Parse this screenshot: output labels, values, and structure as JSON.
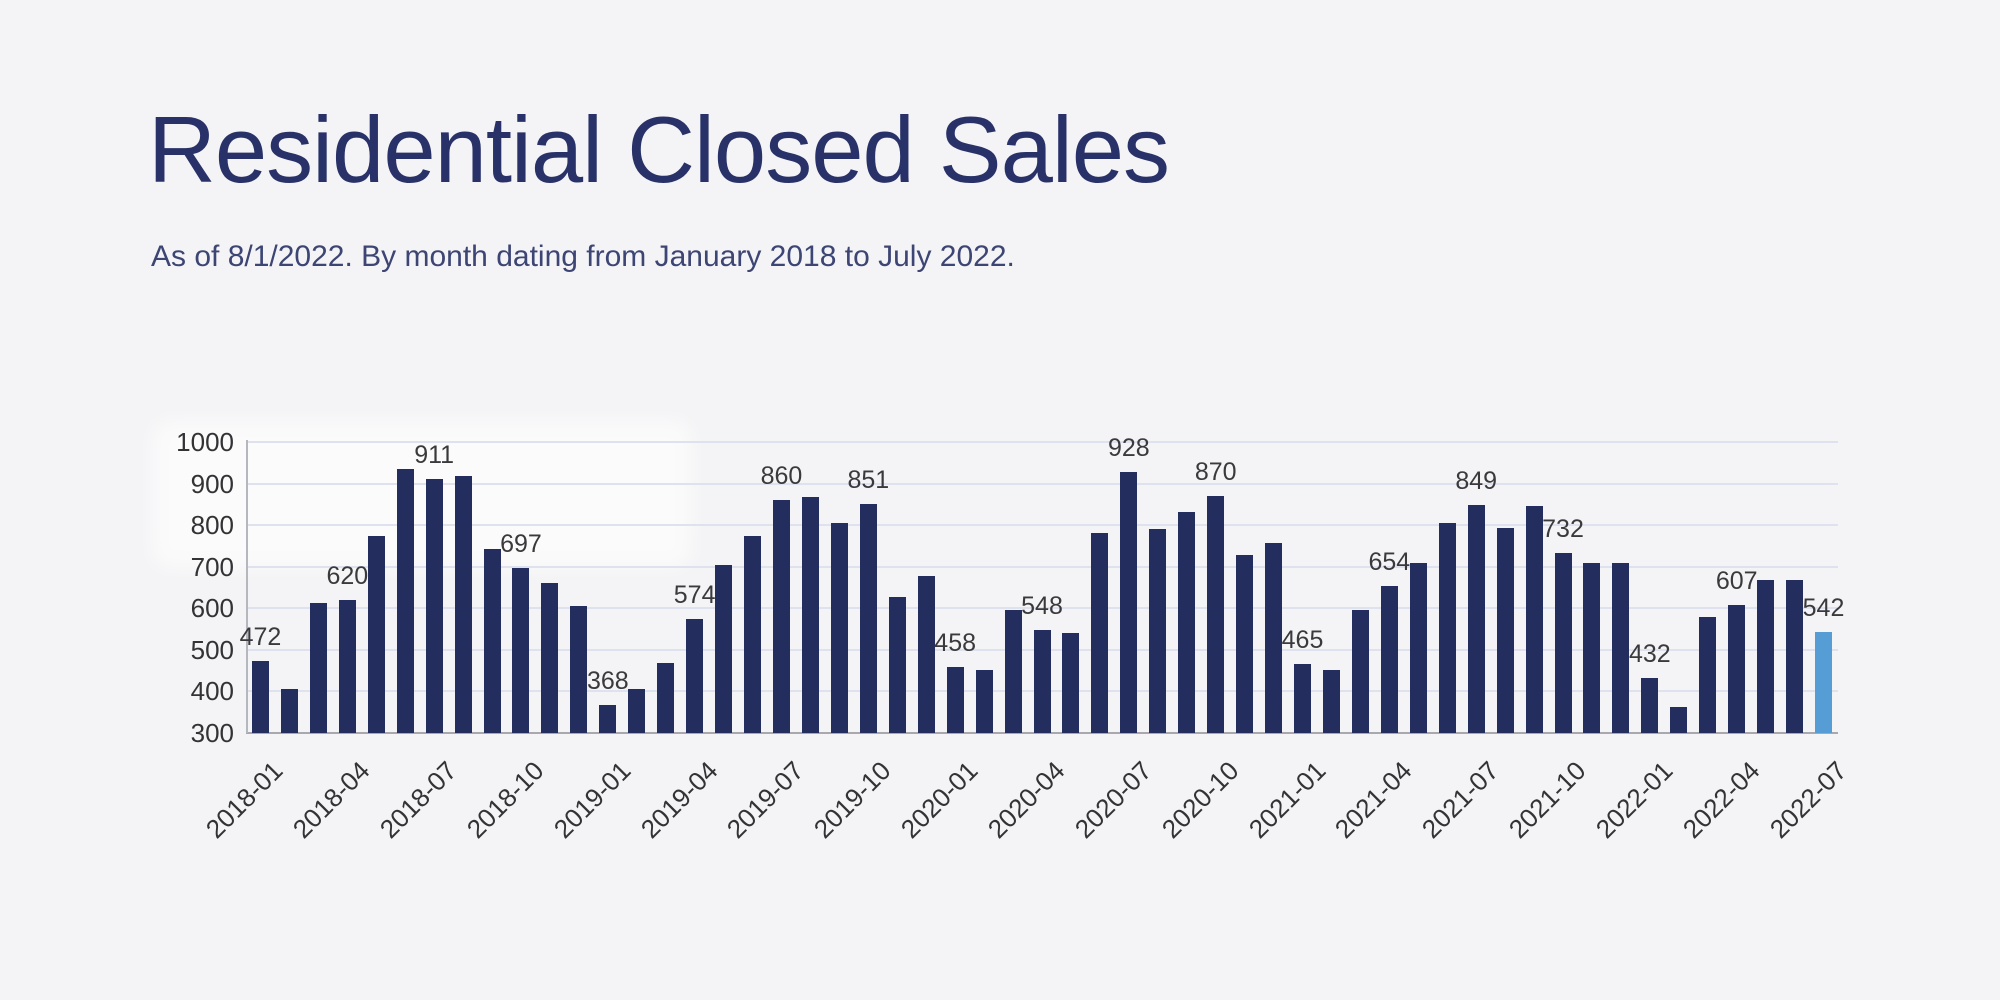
{
  "page": {
    "background": "#f4f4f6"
  },
  "header": {
    "title": "Residential Closed Sales",
    "subtitle": "As of 8/1/2022. By month dating from January 2018 to July 2022.",
    "title_color": "#293268",
    "subtitle_color": "#3c4573"
  },
  "chart_data": {
    "type": "bar",
    "title": "Residential Closed Sales",
    "subtitle": "As of 8/1/2022. By month dating from January 2018 to July 2022.",
    "categories": [
      "2018-01",
      "2018-02",
      "2018-03",
      "2018-04",
      "2018-05",
      "2018-06",
      "2018-07",
      "2018-08",
      "2018-09",
      "2018-10",
      "2018-11",
      "2018-12",
      "2019-01",
      "2019-02",
      "2019-03",
      "2019-04",
      "2019-05",
      "2019-06",
      "2019-07",
      "2019-08",
      "2019-09",
      "2019-10",
      "2019-11",
      "2019-12",
      "2020-01",
      "2020-02",
      "2020-03",
      "2020-04",
      "2020-05",
      "2020-06",
      "2020-07",
      "2020-08",
      "2020-09",
      "2020-10",
      "2020-11",
      "2020-12",
      "2021-01",
      "2021-02",
      "2021-03",
      "2021-04",
      "2021-05",
      "2021-06",
      "2021-07",
      "2021-08",
      "2021-09",
      "2021-10",
      "2021-11",
      "2021-12",
      "2022-01",
      "2022-02",
      "2022-03",
      "2022-04",
      "2022-05",
      "2022-06",
      "2022-07"
    ],
    "values": [
      472,
      405,
      612,
      620,
      775,
      935,
      911,
      919,
      742,
      697,
      660,
      605,
      368,
      405,
      468,
      574,
      703,
      775,
      860,
      868,
      806,
      851,
      628,
      678,
      458,
      452,
      597,
      548,
      540,
      782,
      928,
      791,
      832,
      870,
      727,
      757,
      465,
      452,
      597,
      654,
      710,
      805,
      849,
      792,
      845,
      732,
      710,
      710,
      432,
      362,
      578,
      607,
      668,
      668,
      542
    ],
    "value_labels_shown": [
      472,
      620,
      911,
      697,
      368,
      574,
      860,
      851,
      458,
      548,
      928,
      870,
      465,
      654,
      849,
      732,
      432,
      607,
      542
    ],
    "value_label_every": 3,
    "xtick_labels": [
      "2018-01",
      "2018-04",
      "2018-07",
      "2018-10",
      "2019-01",
      "2019-04",
      "2019-07",
      "2019-10",
      "2020-01",
      "2020-04",
      "2020-07",
      "2020-10",
      "2021-01",
      "2021-04",
      "2021-07",
      "2021-10",
      "2022-01",
      "2022-04",
      "2022-07"
    ],
    "xtick_every": 3,
    "xtick_rotation_deg": -45,
    "yticks": [
      300,
      400,
      500,
      600,
      700,
      800,
      900,
      1000
    ],
    "ylim": [
      300,
      1000
    ],
    "grid": "horizontal",
    "legend": "none",
    "xlabel": "",
    "ylabel": "",
    "bar_color": "#242e5e",
    "highlight_color": "#579dd5",
    "highlight_category": "2022-07",
    "value_label_color": "#3a3a3c",
    "tick_label_color": "#333336"
  }
}
